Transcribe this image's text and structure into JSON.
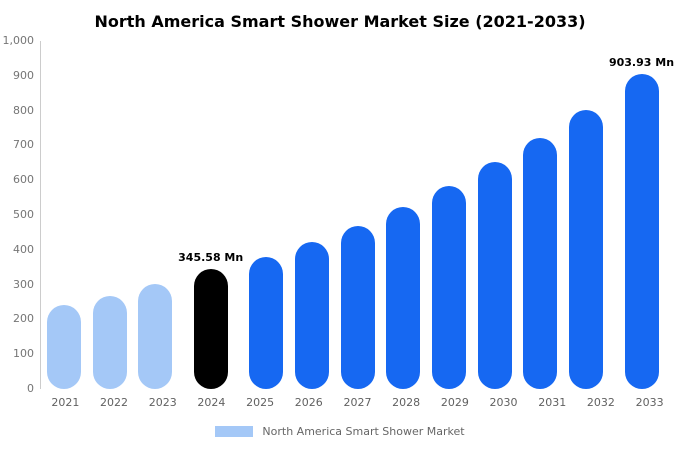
{
  "title": "North America Smart Shower Market Size (2021-2033)",
  "legend": {
    "label": "North America Smart Shower Market",
    "swatch_color": "#a4c8f7"
  },
  "colors": {
    "light_blue": "#a4c8f7",
    "black": "#000000",
    "blue": "#1668f2",
    "axis_text": "#757575",
    "axis_line": "#cccccc"
  },
  "chart_data": {
    "type": "bar",
    "title": "North America Smart Shower Market Size (2021-2033)",
    "categories": [
      "2021",
      "2022",
      "2023",
      "2024",
      "2025",
      "2026",
      "2027",
      "2028",
      "2029",
      "2030",
      "2031",
      "2032",
      "2033"
    ],
    "values": [
      240,
      268,
      302,
      345.58,
      378,
      423,
      467,
      522,
      582,
      651,
      721,
      801,
      903.93
    ],
    "bar_colors": [
      "light_blue",
      "light_blue",
      "light_blue",
      "black",
      "blue",
      "blue",
      "blue",
      "blue",
      "blue",
      "blue",
      "blue",
      "blue",
      "blue"
    ],
    "ylim": [
      0,
      1000
    ],
    "yticks": [
      0,
      100,
      200,
      300,
      400,
      500,
      600,
      700,
      800,
      900,
      1000
    ],
    "ytick_labels": [
      "0",
      "100",
      "200",
      "300",
      "400",
      "500",
      "600",
      "700",
      "800",
      "900",
      "1,000"
    ],
    "xlabel": "",
    "ylabel": "",
    "grid": false,
    "legend_position": "bottom",
    "annotations": [
      {
        "category": "2024",
        "text": "345.58 Mn"
      },
      {
        "category": "2033",
        "text": "903.93 Mn"
      }
    ]
  }
}
